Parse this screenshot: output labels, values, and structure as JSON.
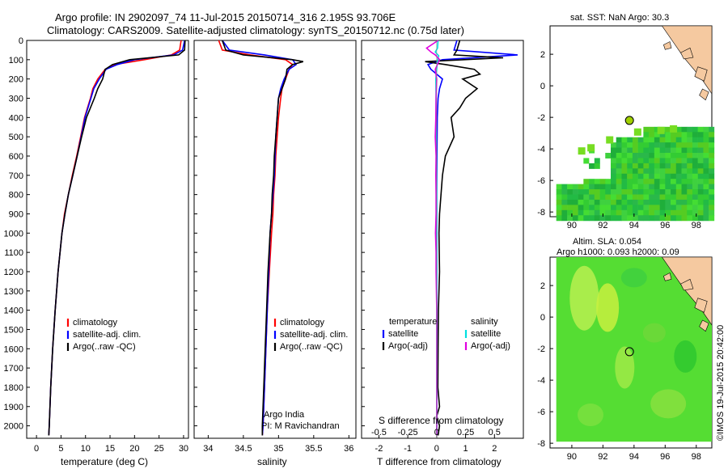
{
  "header": {
    "line1": "Argo profile: IN 2902097_74 11-Jul-2015 20150714_316 2.195S 93.706E",
    "line2": "Climatology: CARS2009. Satellite-adjusted climatology: synTS_20150712.nc (0.75d later)"
  },
  "credit": "©IMOS 19-Jul-2015 20:42:00",
  "depth_ticks": [
    0,
    100,
    200,
    300,
    400,
    500,
    600,
    700,
    800,
    900,
    1000,
    1100,
    1200,
    1300,
    1400,
    1500,
    1600,
    1700,
    1800,
    1900,
    2000
  ],
  "panels": {
    "temperature": {
      "xlabel": "temperature (deg C)",
      "xticks": [
        "0",
        "5",
        "10",
        "15",
        "20",
        "25",
        "30"
      ],
      "legend": [
        "climatology",
        "satellite-adj. clim.",
        "Argo(..raw -QC)"
      ]
    },
    "salinity": {
      "xlabel": "salinity",
      "xticks": [
        "34",
        "34.5",
        "35",
        "35.5",
        "36"
      ],
      "legend": [
        "climatology",
        "satellite-adj. clim.",
        "Argo(..raw -QC)"
      ],
      "note1": "Argo India",
      "note2": "PI: M Ravichandran"
    },
    "difference": {
      "xlabel": "T difference from climatology",
      "xticks": [
        "-2",
        "-1",
        "0",
        "1",
        "2"
      ],
      "top_label": "S difference from climatology",
      "top_ticks": [
        "-0.5",
        "-0.25",
        "0",
        "0.25",
        "0.5"
      ],
      "legend_temperature_title": "temperature",
      "legend_salinity_title": "salinity",
      "legend_items": [
        "satellite",
        "Argo(-adj)",
        "satellite",
        "Argo(-adj)"
      ]
    },
    "sst_map": {
      "title": "sat. SST: NaN Argo: 30.3",
      "xticks": [
        "90",
        "92",
        "94",
        "96",
        "98"
      ],
      "yticks": [
        "2",
        "0",
        "-2",
        "-4",
        "-6",
        "-8"
      ]
    },
    "sla_map": {
      "title1": "Altim. SLA: 0.054",
      "title2": "Argo h1000: 0.093 h2000: 0.09",
      "xticks": [
        "90",
        "92",
        "94",
        "96",
        "98"
      ],
      "yticks": [
        "2",
        "0",
        "-2",
        "-4",
        "-6",
        "-8"
      ]
    }
  },
  "colors": {
    "climatology": "#ff0000",
    "satellite": "#0000ff",
    "argo": "#000000",
    "sat_salinity": "#00e0e0",
    "argo_salinity": "#e000e0",
    "land": "#f5c9a0",
    "float_marker": "#a0d000"
  },
  "chart_data": [
    {
      "type": "line",
      "title": "",
      "xlabel": "temperature (deg C)",
      "ylabel": "",
      "xlim": [
        -2,
        31
      ],
      "ylim": [
        2050,
        0
      ],
      "series": [
        {
          "name": "climatology",
          "depth": [
            0,
            50,
            75,
            100,
            125,
            150,
            200,
            250,
            300,
            400,
            500,
            600,
            700,
            800,
            900,
            1000,
            1200,
            1400,
            1600,
            1800,
            2000,
            2050
          ],
          "values": [
            29.5,
            29.2,
            27.5,
            22,
            16,
            14,
            12.5,
            11.5,
            11,
            9.8,
            9,
            8.2,
            7.3,
            6.5,
            5.7,
            5.2,
            4.4,
            3.8,
            3.3,
            2.9,
            2.6,
            2.5
          ]
        },
        {
          "name": "satellite-adj. clim.",
          "depth": [
            0,
            50,
            75,
            100,
            125,
            150,
            200,
            250,
            300,
            400,
            500,
            600,
            700,
            800,
            900,
            1000,
            1200,
            1400,
            1600,
            1800,
            2000,
            2050
          ],
          "values": [
            30.2,
            29.8,
            28,
            20,
            16.5,
            14.2,
            12.8,
            11.7,
            11.1,
            9.9,
            9.1,
            8.3,
            7.4,
            6.5,
            5.8,
            5.2,
            4.4,
            3.8,
            3.3,
            2.9,
            2.6,
            2.5
          ]
        },
        {
          "name": "Argo(..raw -QC)",
          "depth": [
            0,
            50,
            75,
            100,
            125,
            150,
            200,
            250,
            300,
            400,
            500,
            600,
            700,
            800,
            900,
            1000,
            1200,
            1400,
            1600,
            1800,
            2000,
            2050
          ],
          "values": [
            30.3,
            30.2,
            29,
            19,
            15.5,
            14,
            13.5,
            12.5,
            11.8,
            10.2,
            9.2,
            8.3,
            7.4,
            6.5,
            5.8,
            5.2,
            4.4,
            3.8,
            3.3,
            2.9,
            2.6,
            2.5
          ]
        }
      ]
    },
    {
      "type": "line",
      "title": "",
      "xlabel": "salinity",
      "ylabel": "",
      "xlim": [
        33.8,
        36.1
      ],
      "ylim": [
        2050,
        0
      ],
      "series": [
        {
          "name": "climatology",
          "depth": [
            0,
            50,
            75,
            100,
            125,
            150,
            200,
            250,
            300,
            400,
            500,
            600,
            700,
            800,
            900,
            1000,
            1200,
            1400,
            1600,
            1800,
            2000,
            2050
          ],
          "values": [
            34.15,
            34.2,
            34.6,
            35.1,
            35.2,
            35.15,
            35.1,
            35.05,
            35.03,
            35.0,
            34.98,
            34.96,
            34.95,
            34.93,
            34.92,
            34.9,
            34.87,
            34.84,
            34.82,
            34.8,
            34.78,
            34.77
          ]
        },
        {
          "name": "satellite-adj. clim.",
          "depth": [
            0,
            50,
            75,
            100,
            125,
            150,
            200,
            250,
            300,
            400,
            500,
            600,
            700,
            800,
            900,
            1000,
            1200,
            1400,
            1600,
            1800,
            2000,
            2050
          ],
          "values": [
            34.2,
            34.3,
            34.8,
            35.2,
            35.25,
            35.15,
            35.08,
            35.03,
            35.0,
            34.98,
            34.96,
            34.95,
            34.94,
            34.92,
            34.9,
            34.88,
            34.86,
            34.84,
            34.82,
            34.8,
            34.78,
            34.77
          ]
        },
        {
          "name": "Argo(..raw -QC)",
          "depth": [
            0,
            50,
            75,
            100,
            110,
            125,
            150,
            200,
            250,
            300,
            400,
            500,
            600,
            700,
            800,
            900,
            1000,
            1200,
            1400,
            1600,
            1800,
            2000,
            2050
          ],
          "values": [
            34.2,
            34.25,
            34.5,
            35.2,
            35.35,
            35.2,
            35.12,
            35.1,
            35.05,
            35.0,
            34.98,
            34.96,
            34.94,
            34.93,
            34.91,
            34.9,
            34.88,
            34.85,
            34.83,
            34.81,
            34.79,
            34.77,
            34.77
          ]
        }
      ]
    },
    {
      "type": "line",
      "title": "",
      "xlabel": "T difference from climatology",
      "ylabel": "",
      "xlim": [
        -2.6,
        3
      ],
      "ylim": [
        2050,
        0
      ],
      "series": [
        {
          "name": "temperature satellite",
          "depth": [
            0,
            50,
            75,
            100,
            125,
            150,
            200,
            250,
            300,
            400,
            600,
            800,
            1000,
            1400,
            1800,
            2050
          ],
          "values": [
            0.7,
            0.6,
            2.8,
            0.2,
            -0.3,
            -0.2,
            0.2,
            0.1,
            0.05,
            0.02,
            0.01,
            0,
            0,
            0,
            0,
            0
          ]
        },
        {
          "name": "temperature Argo(-adj)",
          "depth": [
            0,
            50,
            75,
            90,
            110,
            125,
            150,
            175,
            200,
            250,
            300,
            350,
            400,
            500,
            600,
            700,
            800,
            900,
            1000,
            1200,
            1400,
            1600,
            1800,
            1900,
            1950,
            2000,
            2050
          ],
          "values": [
            0.8,
            0.7,
            0.6,
            2.3,
            -0.4,
            0.3,
            1.3,
            1.5,
            0.9,
            1.4,
            1.0,
            0.8,
            0.5,
            0.6,
            0.3,
            0.2,
            0.15,
            0.1,
            0.08,
            0.1,
            0.06,
            0.05,
            0.04,
            0.1,
            0.0,
            0.1,
            0.05
          ]
        },
        {
          "name": "salinity satellite",
          "depth": [
            0,
            40,
            60,
            80,
            100,
            150,
            200,
            300,
            400,
            600,
            800,
            1000,
            1400,
            1800,
            2050
          ],
          "values": [
            0.05,
            0.03,
            -0.05,
            0.07,
            0.03,
            0.0,
            -0.03,
            -0.02,
            -0.02,
            -0.01,
            0,
            0,
            0,
            0,
            0
          ]
        },
        {
          "name": "salinity Argo(-adj)",
          "depth": [
            0,
            40,
            60,
            75,
            100,
            150,
            200,
            300,
            400,
            500,
            600,
            700,
            800,
            900,
            1000,
            1100,
            1200,
            1400,
            1600,
            1800,
            2050
          ],
          "values": [
            0.05,
            -0.35,
            -0.2,
            -0.05,
            0.1,
            -0.05,
            0.0,
            -0.02,
            -0.03,
            -0.05,
            -0.02,
            -0.03,
            -0.02,
            -0.02,
            -0.04,
            -0.02,
            -0.02,
            0.0,
            0.0,
            0.0,
            0.0
          ]
        }
      ]
    }
  ]
}
